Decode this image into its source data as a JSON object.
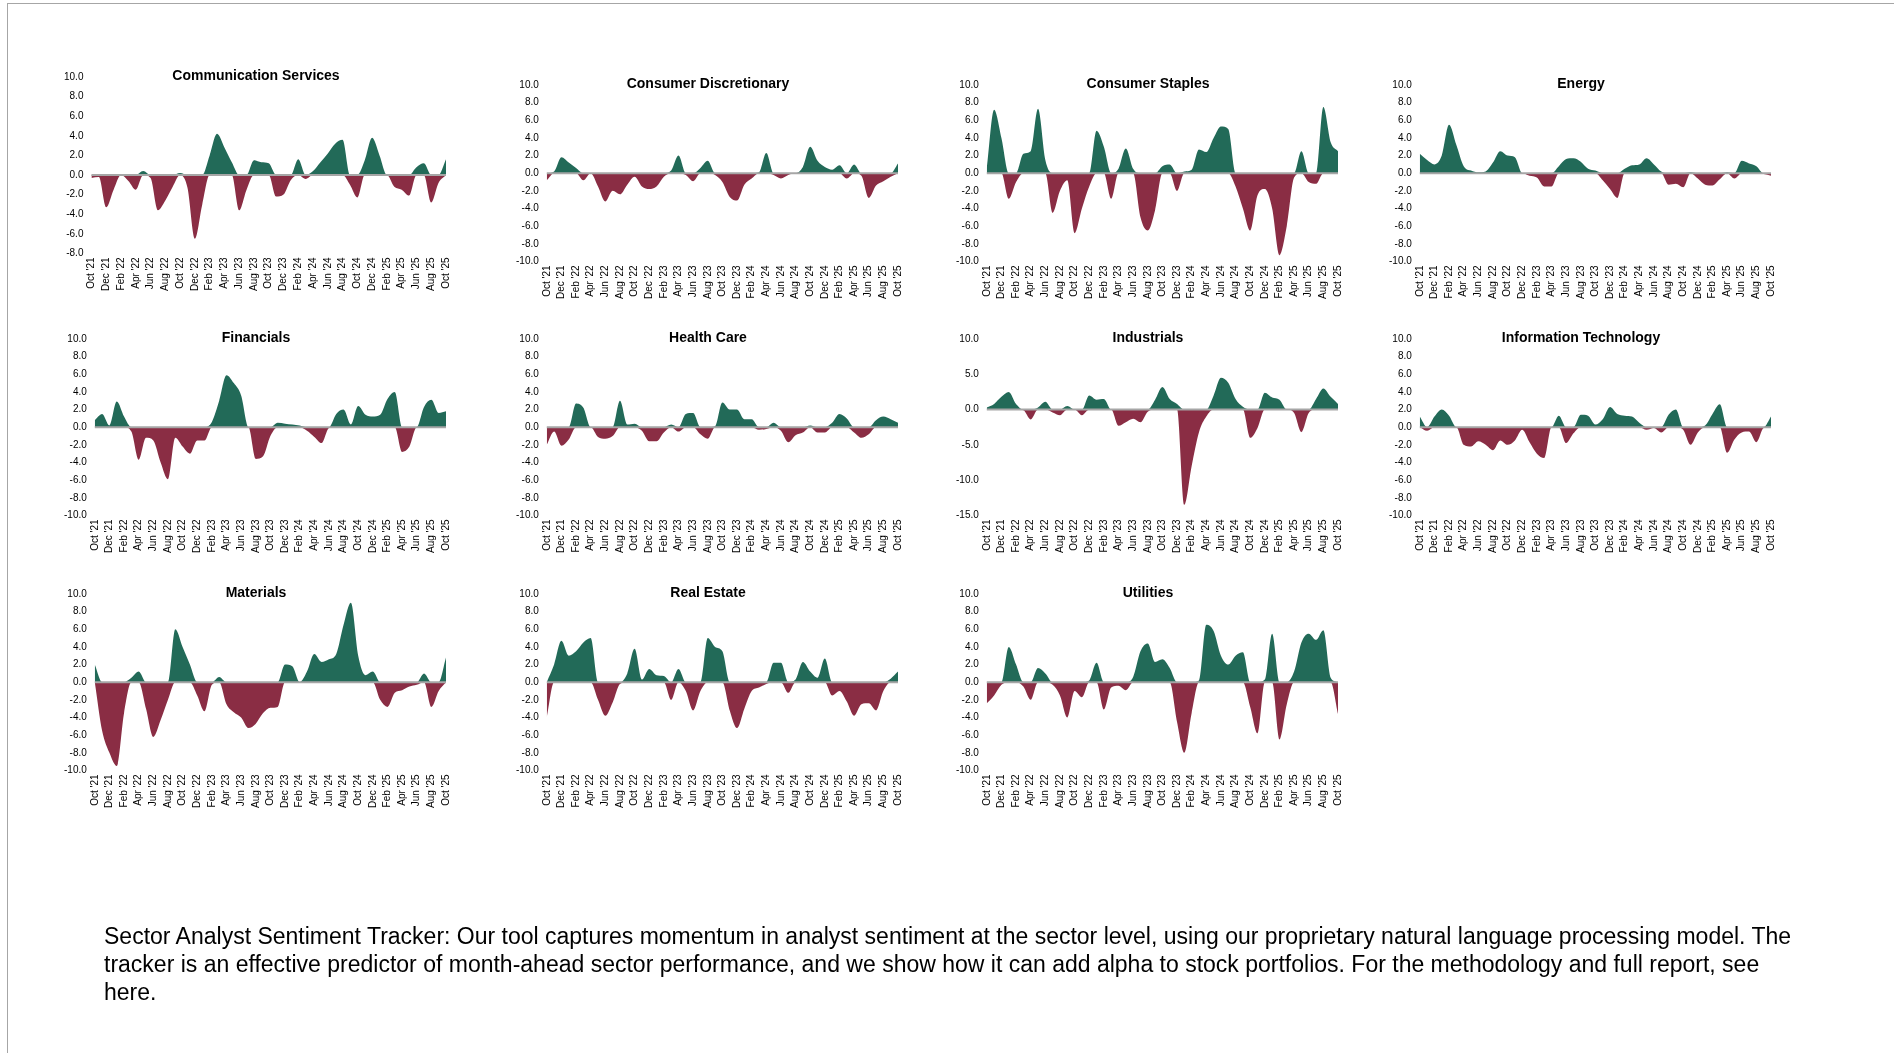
{
  "chart_data": [
    {
      "type": "area",
      "title": "Communication Services",
      "categories": [
        "Oct '21",
        null,
        "Dec '21",
        null,
        "Feb '22",
        null,
        "Apr '22",
        null,
        "Jun '22",
        null,
        "Aug '22",
        null,
        "Oct '22",
        null,
        "Dec '22",
        null,
        "Feb '23",
        null,
        "Apr '23",
        null,
        "Jun '23",
        null,
        "Aug '23",
        null,
        "Oct '23",
        null,
        "Dec '23",
        null,
        "Feb '24",
        null,
        "Apr '24",
        null,
        "Jun '24",
        null,
        "Aug '24",
        null,
        "Oct '24",
        null,
        "Dec '24",
        null,
        "Feb '25",
        null,
        "Apr '25",
        null,
        "Jun '25",
        null,
        "Aug '25",
        null,
        "Oct '25"
      ],
      "series": [
        {
          "color": "#226a58",
          "values": [
            0,
            0,
            0,
            0,
            0.1,
            0,
            0,
            0.4,
            0,
            0,
            0,
            0,
            0.2,
            0,
            0,
            0,
            2.0,
            4.2,
            2.8,
            1.3,
            0,
            0,
            1.5,
            1.3,
            1.2,
            0,
            0,
            0,
            1.6,
            0,
            0.4,
            1.3,
            2.2,
            3.2,
            3.6,
            0,
            0,
            1.5,
            3.8,
            2.0,
            0,
            0,
            0,
            0,
            0.8,
            1.2,
            0,
            0,
            1.6
          ]
        },
        {
          "color": "#8a2d44",
          "values": [
            -0.3,
            -0.2,
            -3.3,
            -1.5,
            0,
            -0.6,
            -1.5,
            0,
            -0.3,
            -3.6,
            -2.6,
            -1.2,
            0,
            -1.3,
            -6.5,
            -3.0,
            0,
            0,
            0,
            0,
            -3.6,
            -1.5,
            0,
            0,
            0,
            -2.2,
            -2.0,
            -0.5,
            0,
            -0.4,
            0,
            0,
            0,
            0,
            0,
            -1.0,
            -2.3,
            0,
            0,
            0,
            0,
            -1.2,
            -1.5,
            -2.1,
            0,
            0,
            -2.8,
            -0.8,
            0
          ]
        }
      ],
      "ylim": [
        -8,
        10
      ],
      "yticks": [
        {
          "value": -8,
          "label": "-8.0"
        },
        {
          "value": -6,
          "label": "-6.0"
        },
        {
          "value": -4,
          "label": "-4.0"
        },
        {
          "value": -2,
          "label": "-2.0"
        },
        {
          "value": 0,
          "label": "0.0"
        },
        {
          "value": 2,
          "label": "2.0"
        },
        {
          "value": 4,
          "label": "4.0"
        },
        {
          "value": 6,
          "label": "6.0"
        },
        {
          "value": 8,
          "label": "8.0"
        },
        {
          "value": 10,
          "label": "10.0"
        }
      ]
    },
    {
      "type": "area",
      "title": "Consumer Discretionary",
      "categories": [
        "Oct '21",
        null,
        "Dec '21",
        null,
        "Feb '22",
        null,
        "Apr '22",
        null,
        "Jun '22",
        null,
        "Aug '22",
        null,
        "Oct '22",
        null,
        "Dec '22",
        null,
        "Feb '23",
        null,
        "Apr '23",
        null,
        "Jun '23",
        null,
        "Aug '23",
        null,
        "Oct '23",
        null,
        "Dec '23",
        null,
        "Feb '24",
        null,
        "Apr '24",
        null,
        "Jun '24",
        null,
        "Aug '24",
        null,
        "Oct '24",
        null,
        "Dec '24",
        null,
        "Feb '25",
        null,
        "Apr '25",
        null,
        "Jun '25",
        null,
        "Aug '25",
        null,
        "Oct '25"
      ],
      "series": [
        {
          "color": "#226a58",
          "values": [
            0,
            0.2,
            1.8,
            1.2,
            0.6,
            0,
            0,
            0,
            0,
            0,
            0,
            0,
            0,
            0,
            0,
            0,
            0,
            0.3,
            2.0,
            0,
            0,
            0.6,
            1.4,
            0,
            0,
            0,
            0,
            0,
            0,
            0.1,
            2.3,
            0,
            0,
            0,
            0,
            0.7,
            3.0,
            1.4,
            0.7,
            0.4,
            0.9,
            0,
            1.0,
            0,
            0,
            0,
            0,
            0,
            1.1
          ]
        },
        {
          "color": "#8a2d44",
          "values": [
            -0.8,
            0,
            0,
            0,
            0,
            -0.8,
            0,
            -1.5,
            -3.2,
            -2.0,
            -2.4,
            -1.3,
            -0.4,
            -1.5,
            -1.8,
            -1.5,
            -0.4,
            0,
            0,
            -0.2,
            -0.9,
            0,
            0,
            -0.2,
            -1.0,
            -2.7,
            -3.1,
            -1.3,
            -0.6,
            0,
            0,
            -0.2,
            -0.6,
            -0.2,
            0,
            0,
            0,
            0,
            0,
            0,
            0,
            -0.6,
            0,
            -0.3,
            -2.8,
            -1.4,
            -0.9,
            -0.4,
            0
          ]
        }
      ],
      "ylim": [
        -10,
        10
      ],
      "yticks": [
        {
          "value": -10,
          "label": "-10.0"
        },
        {
          "value": -8,
          "label": "-8.0"
        },
        {
          "value": -6,
          "label": "-6.0"
        },
        {
          "value": -4,
          "label": "-4.0"
        },
        {
          "value": -2,
          "label": "-2.0"
        },
        {
          "value": 0,
          "label": "0.0"
        },
        {
          "value": 2,
          "label": "2.0"
        },
        {
          "value": 4,
          "label": "4.0"
        },
        {
          "value": 6,
          "label": "6.0"
        },
        {
          "value": 8,
          "label": "8.0"
        },
        {
          "value": 10,
          "label": "10.0"
        }
      ]
    },
    {
      "type": "area",
      "title": "Consumer Staples",
      "categories": [
        "Oct '21",
        null,
        "Dec '21",
        null,
        "Feb '22",
        null,
        "Apr '22",
        null,
        "Jun '22",
        null,
        "Aug '22",
        null,
        "Oct '22",
        null,
        "Dec '22",
        null,
        "Feb '23",
        null,
        "Apr '23",
        null,
        "Jun '23",
        null,
        "Aug '23",
        null,
        "Oct '23",
        null,
        "Dec '23",
        null,
        "Feb '24",
        null,
        "Apr '24",
        null,
        "Jun '24",
        null,
        "Aug '24",
        null,
        "Oct '24",
        null,
        "Dec '24",
        null,
        "Feb '25",
        null,
        "Apr '25",
        null,
        "Jun '25",
        null,
        "Aug '25",
        null,
        "Oct '25"
      ],
      "series": [
        {
          "color": "#226a58",
          "values": [
            0.5,
            7.2,
            4.0,
            0,
            0,
            2.2,
            2.5,
            7.3,
            1.5,
            0,
            0,
            0,
            0,
            0,
            0,
            4.8,
            3.0,
            0,
            0.5,
            2.8,
            0.5,
            0,
            0,
            0,
            0.8,
            1.0,
            0,
            0.2,
            0.4,
            2.7,
            2.4,
            4.0,
            5.3,
            5.0,
            0,
            0,
            0,
            0,
            0,
            0,
            0,
            0,
            0,
            2.5,
            0,
            0,
            7.5,
            3.5,
            2.5
          ]
        },
        {
          "color": "#8a2d44",
          "values": [
            0,
            0,
            0,
            -2.9,
            -1.0,
            0,
            0,
            0,
            0,
            -4.5,
            -2.0,
            -0.8,
            -6.8,
            -4.0,
            -1.5,
            0,
            0,
            -2.9,
            0,
            0,
            0,
            -5.0,
            -6.5,
            -4.2,
            0,
            0,
            -2.0,
            0,
            0,
            0,
            0,
            0,
            0,
            0,
            -1.5,
            -4.0,
            -6.5,
            -2.5,
            -1.8,
            -4.0,
            -9.3,
            -6.0,
            -0.5,
            0,
            -1.0,
            -1.2,
            0,
            0,
            0
          ]
        }
      ],
      "ylim": [
        -10,
        10
      ],
      "yticks": [
        {
          "value": -10,
          "label": "-10.0"
        },
        {
          "value": -8,
          "label": "-8.0"
        },
        {
          "value": -6,
          "label": "-6.0"
        },
        {
          "value": -4,
          "label": "-4.0"
        },
        {
          "value": -2,
          "label": "-2.0"
        },
        {
          "value": 0,
          "label": "0.0"
        },
        {
          "value": 2,
          "label": "2.0"
        },
        {
          "value": 4,
          "label": "4.0"
        },
        {
          "value": 6,
          "label": "6.0"
        },
        {
          "value": 8,
          "label": "8.0"
        },
        {
          "value": 10,
          "label": "10.0"
        }
      ]
    },
    {
      "type": "area",
      "title": "Energy",
      "categories": [
        "Oct '21",
        null,
        "Dec '21",
        null,
        "Feb '22",
        null,
        "Apr '22",
        null,
        "Jun '22",
        null,
        "Aug '22",
        null,
        "Oct '22",
        null,
        "Dec '22",
        null,
        "Feb '23",
        null,
        "Apr '23",
        null,
        "Jun '23",
        null,
        "Aug '23",
        null,
        "Oct '23",
        null,
        "Dec '23",
        null,
        "Feb '24",
        null,
        "Apr '24",
        null,
        "Jun '24",
        null,
        "Aug '24",
        null,
        "Oct '24",
        null,
        "Dec '24",
        null,
        "Feb '25",
        null,
        "Apr '25",
        null,
        "Jun '25",
        null,
        "Aug '25",
        null,
        "Oct '25"
      ],
      "series": [
        {
          "color": "#226a58",
          "values": [
            2.2,
            1.5,
            1.0,
            2.0,
            5.5,
            3.2,
            0.8,
            0.3,
            0.1,
            0.2,
            1.2,
            2.5,
            2.0,
            1.8,
            0,
            0,
            0,
            0,
            0,
            0.8,
            1.6,
            1.7,
            1.3,
            0.5,
            0.3,
            0,
            0,
            0,
            0.5,
            0.9,
            1.0,
            1.7,
            1.0,
            0.2,
            0,
            0,
            0,
            0.1,
            0,
            0,
            0,
            0,
            0.1,
            0,
            1.4,
            1.1,
            0.8,
            0,
            0
          ]
        },
        {
          "color": "#8a2d44",
          "values": [
            0,
            0,
            0,
            0,
            0,
            0,
            0,
            0,
            0,
            0,
            0,
            0,
            0,
            0,
            0,
            -0.3,
            -0.5,
            -1.5,
            -1.5,
            0,
            0,
            0,
            0,
            0,
            0,
            -0.8,
            -1.8,
            -2.8,
            0,
            0,
            0,
            0,
            0,
            0,
            -1.3,
            -1.2,
            -1.6,
            0,
            -0.6,
            -1.3,
            -1.4,
            -0.7,
            0,
            -0.6,
            0,
            0,
            0,
            -0.1,
            -0.3
          ]
        }
      ],
      "ylim": [
        -10,
        10
      ],
      "yticks": [
        {
          "value": -10,
          "label": "-10.0"
        },
        {
          "value": -8,
          "label": "-8.0"
        },
        {
          "value": -6,
          "label": "-6.0"
        },
        {
          "value": -4,
          "label": "-4.0"
        },
        {
          "value": -2,
          "label": "-2.0"
        },
        {
          "value": 0,
          "label": "0.0"
        },
        {
          "value": 2,
          "label": "2.0"
        },
        {
          "value": 4,
          "label": "4.0"
        },
        {
          "value": 6,
          "label": "6.0"
        },
        {
          "value": 8,
          "label": "8.0"
        },
        {
          "value": 10,
          "label": "10.0"
        }
      ]
    },
    {
      "type": "area",
      "title": "Financials",
      "categories": [
        "Oct '21",
        null,
        "Dec '21",
        null,
        "Feb '22",
        null,
        "Apr '22",
        null,
        "Jun '22",
        null,
        "Aug '22",
        null,
        "Oct '22",
        null,
        "Dec '22",
        null,
        "Feb '23",
        null,
        "Apr '23",
        null,
        "Jun '23",
        null,
        "Aug '23",
        null,
        "Oct '23",
        null,
        "Dec '23",
        null,
        "Feb '24",
        null,
        "Apr '24",
        null,
        "Jun '24",
        null,
        "Aug '24",
        null,
        "Oct '24",
        null,
        "Dec '24",
        null,
        "Feb '25",
        null,
        "Apr '25",
        null,
        "Jun '25",
        null,
        "Aug '25",
        null,
        "Oct '25"
      ],
      "series": [
        {
          "color": "#226a58",
          "values": [
            0.8,
            1.5,
            0.2,
            2.9,
            1.2,
            0,
            0,
            0,
            0,
            0,
            0,
            0,
            0,
            0,
            0,
            0,
            0.6,
            3.0,
            5.9,
            5.0,
            3.6,
            0,
            0,
            0,
            0,
            0.5,
            0.4,
            0.3,
            0.2,
            0,
            0,
            0,
            0,
            1.5,
            2.0,
            0.3,
            2.4,
            1.4,
            1.2,
            1.4,
            3.2,
            4.0,
            0,
            0,
            0,
            2.3,
            3.1,
            1.6,
            1.8
          ]
        },
        {
          "color": "#8a2d44",
          "values": [
            0,
            0,
            0,
            0,
            0,
            -0.5,
            -3.7,
            -1.2,
            -1.5,
            -4.0,
            -5.9,
            -1.2,
            -2.2,
            -3.0,
            -1.5,
            -1.5,
            0,
            0,
            0,
            0,
            0,
            0,
            -3.6,
            -3.3,
            -1.0,
            0,
            0,
            0,
            0,
            -0.4,
            -1.1,
            -1.8,
            -0.1,
            0,
            0,
            0,
            0,
            0,
            0,
            0,
            0,
            0,
            -2.8,
            -2.2,
            0,
            0,
            0,
            0,
            0
          ]
        }
      ],
      "ylim": [
        -10,
        10
      ],
      "yticks": [
        {
          "value": -10,
          "label": "-10.0"
        },
        {
          "value": -8,
          "label": "-8.0"
        },
        {
          "value": -6,
          "label": "-6.0"
        },
        {
          "value": -4,
          "label": "-4.0"
        },
        {
          "value": -2,
          "label": "-2.0"
        },
        {
          "value": 0,
          "label": "0.0"
        },
        {
          "value": 2,
          "label": "2.0"
        },
        {
          "value": 4,
          "label": "4.0"
        },
        {
          "value": 6,
          "label": "6.0"
        },
        {
          "value": 8,
          "label": "8.0"
        },
        {
          "value": 10,
          "label": "10.0"
        }
      ]
    },
    {
      "type": "area",
      "title": "Health Care",
      "categories": [
        "Oct '21",
        null,
        "Dec '21",
        null,
        "Feb '22",
        null,
        "Apr '22",
        null,
        "Jun '22",
        null,
        "Aug '22",
        null,
        "Oct '22",
        null,
        "Dec '22",
        null,
        "Feb '23",
        null,
        "Apr '23",
        null,
        "Jun '23",
        null,
        "Aug '23",
        null,
        "Oct '23",
        null,
        "Dec '23",
        null,
        "Feb '24",
        null,
        "Apr '24",
        null,
        "Jun '24",
        null,
        "Aug '24",
        null,
        "Oct '24",
        null,
        "Dec '24",
        null,
        "Feb '25",
        null,
        "Apr '25",
        null,
        "Jun '25",
        null,
        "Aug '25",
        null,
        "Oct '25"
      ],
      "series": [
        {
          "color": "#226a58",
          "values": [
            0,
            0,
            0,
            0,
            2.7,
            2.2,
            0,
            0,
            0,
            0,
            3.0,
            0.3,
            0.4,
            0,
            0,
            0,
            0,
            0.3,
            0,
            1.5,
            1.6,
            0,
            0,
            0.1,
            2.8,
            2.0,
            2.0,
            0.9,
            0.9,
            0,
            0,
            0.5,
            0,
            0,
            0,
            0,
            0.2,
            0,
            0,
            0.5,
            1.5,
            1.0,
            0,
            0,
            0,
            0.8,
            1.2,
            0.9,
            0.5
          ]
        },
        {
          "color": "#8a2d44",
          "values": [
            -2.0,
            -0.5,
            -2.1,
            -1.4,
            0,
            0,
            0,
            -1.1,
            -1.3,
            -1.0,
            0,
            0,
            0,
            -0.4,
            -1.6,
            -1.6,
            -0.6,
            0,
            -0.5,
            0,
            0,
            -0.8,
            -1.3,
            0,
            0,
            0,
            0,
            0,
            0,
            -0.3,
            -0.2,
            0,
            -0.4,
            -1.7,
            -0.9,
            -0.6,
            0,
            -0.6,
            -0.6,
            0,
            0,
            0,
            -0.6,
            -1.2,
            -0.8,
            0,
            0,
            0,
            0
          ]
        }
      ],
      "ylim": [
        -10,
        10
      ],
      "yticks": [
        {
          "value": -10,
          "label": "-10.0"
        },
        {
          "value": -8,
          "label": "-8.0"
        },
        {
          "value": -6,
          "label": "-6.0"
        },
        {
          "value": -4,
          "label": "-4.0"
        },
        {
          "value": -2,
          "label": "-2.0"
        },
        {
          "value": 0,
          "label": "0.0"
        },
        {
          "value": 2,
          "label": "2.0"
        },
        {
          "value": 4,
          "label": "4.0"
        },
        {
          "value": 6,
          "label": "6.0"
        },
        {
          "value": 8,
          "label": "8.0"
        },
        {
          "value": 10,
          "label": "10.0"
        }
      ]
    },
    {
      "type": "area",
      "title": "Industrials",
      "categories": [
        "Oct '21",
        null,
        "Dec '21",
        null,
        "Feb '22",
        null,
        "Apr '22",
        null,
        "Jun '22",
        null,
        "Aug '22",
        null,
        "Oct '22",
        null,
        "Dec '22",
        null,
        "Feb '23",
        null,
        "Apr '23",
        null,
        "Jun '23",
        null,
        "Aug '23",
        null,
        "Oct '23",
        null,
        "Dec '23",
        null,
        "Feb '24",
        null,
        "Apr '24",
        null,
        "Jun '24",
        null,
        "Aug '24",
        null,
        "Oct '24",
        null,
        "Dec '24",
        null,
        "Feb '25",
        null,
        "Apr '25",
        null,
        "Jun '25",
        null,
        "Aug '25",
        null,
        "Oct '25"
      ],
      "series": [
        {
          "color": "#226a58",
          "values": [
            0.3,
            0.8,
            1.8,
            2.5,
            0.8,
            0,
            0,
            0.3,
            1.1,
            0,
            0,
            0.5,
            0,
            0,
            2.0,
            1.4,
            1.5,
            0,
            0,
            0,
            0,
            0,
            0,
            1.4,
            3.2,
            1.5,
            0.8,
            0,
            0,
            0,
            0,
            2.0,
            4.5,
            3.8,
            1.5,
            0.4,
            0,
            0,
            2.4,
            1.7,
            1.4,
            0,
            0,
            0,
            0,
            1.5,
            3.0,
            1.8,
            0.8
          ]
        },
        {
          "color": "#8a2d44",
          "values": [
            0,
            0,
            0,
            0,
            0,
            -0.1,
            -1.4,
            0,
            0,
            -0.4,
            -0.8,
            0,
            0,
            -0.8,
            0,
            0,
            0,
            0,
            -2.3,
            -1.8,
            -1.3,
            -1.8,
            -0.3,
            0,
            0,
            0,
            0,
            -13.5,
            -8.0,
            -3.2,
            -1.0,
            0,
            0,
            0,
            0,
            0,
            -4.0,
            -2.6,
            0,
            0,
            0,
            0,
            -0.5,
            -3.2,
            -0.5,
            0,
            0,
            0,
            0
          ]
        }
      ],
      "ylim": [
        -15,
        10
      ],
      "yticks": [
        {
          "value": -15,
          "label": "-15.0"
        },
        {
          "value": -10,
          "label": "-10.0"
        },
        {
          "value": -5,
          "label": "-5.0"
        },
        {
          "value": 0,
          "label": "0.0"
        },
        {
          "value": 5,
          "label": "5.0"
        },
        {
          "value": 10,
          "label": "10.0"
        }
      ]
    },
    {
      "type": "area",
      "title": "Information Technology",
      "categories": [
        "Oct '21",
        null,
        "Dec '21",
        null,
        "Feb '22",
        null,
        "Apr '22",
        null,
        "Jun '22",
        null,
        "Aug '22",
        null,
        "Oct '22",
        null,
        "Dec '22",
        null,
        "Feb '23",
        null,
        "Apr '23",
        null,
        "Jun '23",
        null,
        "Aug '23",
        null,
        "Oct '23",
        null,
        "Dec '23",
        null,
        "Feb '24",
        null,
        "Apr '24",
        null,
        "Jun '24",
        null,
        "Aug '24",
        null,
        "Oct '24",
        null,
        "Dec '24",
        null,
        "Feb '25",
        null,
        "Apr '25",
        null,
        "Jun '25",
        null,
        "Aug '25",
        null,
        "Oct '25"
      ],
      "series": [
        {
          "color": "#226a58",
          "values": [
            1.2,
            0,
            1.2,
            2.0,
            1.3,
            0,
            0,
            0,
            0,
            0,
            0,
            0,
            0,
            0,
            0,
            0,
            0,
            0,
            0,
            1.3,
            0,
            0,
            1.4,
            1.3,
            0.3,
            0.9,
            2.3,
            1.5,
            1.3,
            1.2,
            0.5,
            0,
            0,
            0,
            1.4,
            2.0,
            0,
            0,
            0,
            0.2,
            1.5,
            2.6,
            0,
            0,
            0,
            0,
            0,
            0,
            1.2
          ]
        },
        {
          "color": "#8a2d44",
          "values": [
            0,
            -0.4,
            0,
            0,
            0,
            0,
            -2.0,
            -2.2,
            -1.6,
            -2.0,
            -2.6,
            -1.5,
            -2.0,
            -1.5,
            -0.3,
            -1.7,
            -3.0,
            -3.5,
            0,
            0,
            -1.8,
            -0.7,
            0,
            0,
            0,
            0,
            0,
            0,
            0,
            0,
            0,
            -0.3,
            -0.1,
            -0.6,
            0,
            0,
            -0.3,
            -2.0,
            -0.6,
            0,
            0,
            0,
            -2.9,
            -1.4,
            -0.6,
            -0.5,
            -1.7,
            -0.1,
            0
          ]
        }
      ],
      "ylim": [
        -10,
        10
      ],
      "yticks": [
        {
          "value": -10,
          "label": "-10.0"
        },
        {
          "value": -8,
          "label": "-8.0"
        },
        {
          "value": -6,
          "label": "-6.0"
        },
        {
          "value": -4,
          "label": "-4.0"
        },
        {
          "value": -2,
          "label": "-2.0"
        },
        {
          "value": 0,
          "label": "0.0"
        },
        {
          "value": 2,
          "label": "2.0"
        },
        {
          "value": 4,
          "label": "4.0"
        },
        {
          "value": 6,
          "label": "6.0"
        },
        {
          "value": 8,
          "label": "8.0"
        },
        {
          "value": 10,
          "label": "10.0"
        }
      ]
    },
    {
      "type": "area",
      "title": "Materials",
      "categories": [
        "Oct '21",
        null,
        "Dec '21",
        null,
        "Feb '22",
        null,
        "Apr '22",
        null,
        "Jun '22",
        null,
        "Aug '22",
        null,
        "Oct '22",
        null,
        "Dec '22",
        null,
        "Feb '23",
        null,
        "Apr '23",
        null,
        "Jun '23",
        null,
        "Aug '23",
        null,
        "Oct '23",
        null,
        "Dec '23",
        null,
        "Feb '24",
        null,
        "Apr '24",
        null,
        "Jun '24",
        null,
        "Aug '24",
        null,
        "Oct '24",
        null,
        "Dec '24",
        null,
        "Feb '25",
        null,
        "Apr '25",
        null,
        "Jun '25",
        null,
        "Aug '25",
        null,
        "Oct '25"
      ],
      "series": [
        {
          "color": "#226a58",
          "values": [
            2.0,
            0,
            0,
            0,
            0,
            0.5,
            1.2,
            0,
            0,
            0,
            0,
            6.0,
            4.0,
            2.0,
            0,
            0,
            0,
            0.6,
            0,
            0,
            0,
            0,
            0,
            0,
            0,
            0,
            2.0,
            1.8,
            0,
            1.2,
            3.2,
            2.3,
            2.6,
            3.2,
            6.5,
            9.0,
            3.0,
            0.8,
            1.2,
            0,
            0,
            0,
            0,
            0,
            0,
            1.0,
            0,
            0,
            2.8
          ]
        },
        {
          "color": "#8a2d44",
          "values": [
            0,
            -5.5,
            -8.0,
            -9.5,
            -3.5,
            0,
            0,
            -3.0,
            -6.2,
            -4.3,
            -2.0,
            0,
            0,
            0,
            -1.5,
            -3.3,
            -0.3,
            0,
            -2.5,
            -3.4,
            -4.0,
            -5.2,
            -4.7,
            -3.5,
            -2.9,
            -2.8,
            0,
            0,
            0,
            0,
            0,
            0,
            0,
            0,
            0,
            0,
            0,
            0,
            0,
            -2.0,
            -2.8,
            -1.2,
            -0.9,
            -0.5,
            -0.3,
            0,
            -2.8,
            -1.0,
            0
          ]
        }
      ],
      "ylim": [
        -10,
        10
      ],
      "yticks": [
        {
          "value": -10,
          "label": "-10.0"
        },
        {
          "value": -8,
          "label": "-8.0"
        },
        {
          "value": -6,
          "label": "-6.0"
        },
        {
          "value": -4,
          "label": "-4.0"
        },
        {
          "value": -2,
          "label": "-2.0"
        },
        {
          "value": 0,
          "label": "0.0"
        },
        {
          "value": 2,
          "label": "2.0"
        },
        {
          "value": 4,
          "label": "4.0"
        },
        {
          "value": 6,
          "label": "6.0"
        },
        {
          "value": 8,
          "label": "8.0"
        },
        {
          "value": 10,
          "label": "10.0"
        }
      ]
    },
    {
      "type": "area",
      "title": "Real Estate",
      "categories": [
        "Oct '21",
        null,
        "Dec '21",
        null,
        "Feb '22",
        null,
        "Apr '22",
        null,
        "Jun '22",
        null,
        "Aug '22",
        null,
        "Oct '22",
        null,
        "Dec '22",
        null,
        "Feb '23",
        null,
        "Apr '23",
        null,
        "Jun '23",
        null,
        "Aug '23",
        null,
        "Oct '23",
        null,
        "Dec '23",
        null,
        "Feb '24",
        null,
        "Apr '24",
        null,
        "Jun '24",
        null,
        "Aug '24",
        null,
        "Oct '24",
        null,
        "Dec '24",
        null,
        "Feb '25",
        null,
        "Apr '25",
        null,
        "Jun '25",
        null,
        "Aug '25",
        null,
        "Oct '25"
      ],
      "series": [
        {
          "color": "#226a58",
          "values": [
            0,
            2.0,
            4.7,
            3.0,
            3.5,
            4.5,
            5.0,
            0,
            0,
            0,
            0,
            1.0,
            3.8,
            0.3,
            1.5,
            0.8,
            0.7,
            0,
            1.5,
            0,
            0,
            0,
            5.0,
            4.0,
            3.5,
            0,
            0,
            0,
            0,
            0,
            0,
            2.2,
            2.2,
            0,
            0.3,
            2.3,
            1.2,
            0.5,
            2.7,
            0,
            0,
            0,
            0,
            0,
            0,
            0,
            0,
            0.4,
            1.2
          ]
        },
        {
          "color": "#8a2d44",
          "values": [
            -4.0,
            0,
            0,
            0,
            0,
            0,
            0,
            -2.0,
            -3.8,
            -2.3,
            -0.2,
            0,
            0,
            0,
            0,
            0,
            0,
            -2.0,
            0,
            -1.0,
            -3.2,
            -1.0,
            0,
            0,
            0,
            -3.2,
            -5.2,
            -3.0,
            -1.0,
            -0.6,
            -0.2,
            0,
            0,
            -1.2,
            0,
            0,
            0,
            0,
            0,
            -1.5,
            -1.0,
            -2.2,
            -3.8,
            -2.5,
            -2.4,
            -3.2,
            -1.0,
            0,
            0
          ]
        }
      ],
      "ylim": [
        -10,
        10
      ],
      "yticks": [
        {
          "value": -10,
          "label": "-10.0"
        },
        {
          "value": -8,
          "label": "-8.0"
        },
        {
          "value": -6,
          "label": "-6.0"
        },
        {
          "value": -4,
          "label": "-4.0"
        },
        {
          "value": -2,
          "label": "-2.0"
        },
        {
          "value": 0,
          "label": "0.0"
        },
        {
          "value": 2,
          "label": "2.0"
        },
        {
          "value": 4,
          "label": "4.0"
        },
        {
          "value": 6,
          "label": "6.0"
        },
        {
          "value": 8,
          "label": "8.0"
        },
        {
          "value": 10,
          "label": "10.0"
        }
      ]
    },
    {
      "type": "area",
      "title": "Utilities",
      "categories": [
        "Oct '21",
        null,
        "Dec '21",
        null,
        "Feb '22",
        null,
        "Apr '22",
        null,
        "Jun '22",
        null,
        "Aug '22",
        null,
        "Oct '22",
        null,
        "Dec '22",
        null,
        "Feb '23",
        null,
        "Apr '23",
        null,
        "Jun '23",
        null,
        "Aug '23",
        null,
        "Oct '23",
        null,
        "Dec '23",
        null,
        "Feb '24",
        null,
        "Apr '24",
        null,
        "Jun '24",
        null,
        "Aug '24",
        null,
        "Oct '24",
        null,
        "Dec '24",
        null,
        "Feb '25",
        null,
        "Apr '25",
        null,
        "Jun '25",
        null,
        "Aug '25",
        null,
        "Oct '25"
      ],
      "series": [
        {
          "color": "#226a58",
          "values": [
            0,
            0,
            0,
            4.0,
            2.0,
            0,
            0,
            1.6,
            1.0,
            0,
            0,
            0,
            0,
            0,
            0.2,
            2.2,
            0,
            0,
            0,
            0,
            0.6,
            3.5,
            4.4,
            2.3,
            2.6,
            1.6,
            0,
            0,
            0,
            0.2,
            6.5,
            5.8,
            3.0,
            2.0,
            3.0,
            3.4,
            0,
            0,
            0.3,
            5.5,
            0,
            0,
            1.2,
            4.5,
            5.5,
            4.8,
            5.9,
            0.5,
            0
          ]
        },
        {
          "color": "#8a2d44",
          "values": [
            -2.4,
            -1.5,
            -0.3,
            0,
            0,
            -0.5,
            -2.0,
            0,
            0,
            -0.3,
            -1.5,
            -4.0,
            -1.0,
            -1.7,
            0,
            0,
            -3.1,
            -0.6,
            -0.4,
            -0.9,
            0,
            0,
            0,
            0,
            0,
            0,
            -4.5,
            -8.0,
            -3.5,
            0,
            0,
            0,
            0,
            0,
            0,
            0,
            -2.8,
            -5.8,
            0,
            0,
            -6.5,
            -2.5,
            0,
            0,
            0,
            0,
            0,
            0,
            -3.6
          ]
        }
      ],
      "ylim": [
        -10,
        10
      ],
      "yticks": [
        {
          "value": -10,
          "label": "-10.0"
        },
        {
          "value": -8,
          "label": "-8.0"
        },
        {
          "value": -6,
          "label": "-6.0"
        },
        {
          "value": -4,
          "label": "-4.0"
        },
        {
          "value": -2,
          "label": "-2.0"
        },
        {
          "value": 0,
          "label": "0.0"
        },
        {
          "value": 2,
          "label": "2.0"
        },
        {
          "value": 4,
          "label": "4.0"
        },
        {
          "value": 6,
          "label": "6.0"
        },
        {
          "value": 8,
          "label": "8.0"
        },
        {
          "value": 10,
          "label": "10.0"
        }
      ]
    },
    {
      "type": "other",
      "annotations": [
        "Sector Analyst Sentiment Tracker: Our tool captures momentum in analyst sentiment at the sector level, using our proprietary natural language processing model. The tracker is an effective predictor of month-ahead sector performance, and we show how it can add alpha to stock portfolios. For the methodology and full report, see here."
      ]
    }
  ]
}
